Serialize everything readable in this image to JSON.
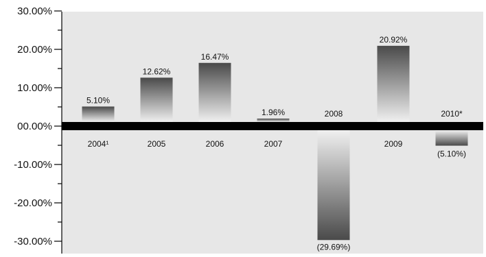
{
  "chart_data": {
    "type": "bar",
    "categories": [
      "2004",
      "2005",
      "2006",
      "2007",
      "2008",
      "2009",
      "2010"
    ],
    "category_labels": [
      "2004¹",
      "2005",
      "2006",
      "2007",
      "2008",
      "2009",
      "2010*"
    ],
    "values": [
      5.1,
      12.62,
      16.47,
      1.96,
      -29.69,
      20.92,
      -5.1
    ],
    "value_labels": [
      "5.10%",
      "12.62%",
      "16.47%",
      "1.96%",
      "(29.69%)",
      "20.92%",
      "(5.10%)"
    ],
    "title": "",
    "xlabel": "",
    "ylabel": "",
    "ylim": [
      -35,
      30
    ],
    "yticks": [
      30,
      20,
      10,
      0,
      -10,
      -20,
      -30
    ],
    "ytick_labels": [
      "30.00%",
      "20.00%",
      "10.00%",
      "00.00%",
      "-10.00%",
      "-20.00%",
      "-30.00%"
    ],
    "minor_tick_step": 5,
    "grid": false,
    "legend": "none",
    "colors": {
      "plot_background": "#e7e7e7",
      "bar_dark": "#4a4a4a",
      "bar_light": "#f0f0f0",
      "zero_line": "#000000",
      "axis": "#000000"
    }
  }
}
